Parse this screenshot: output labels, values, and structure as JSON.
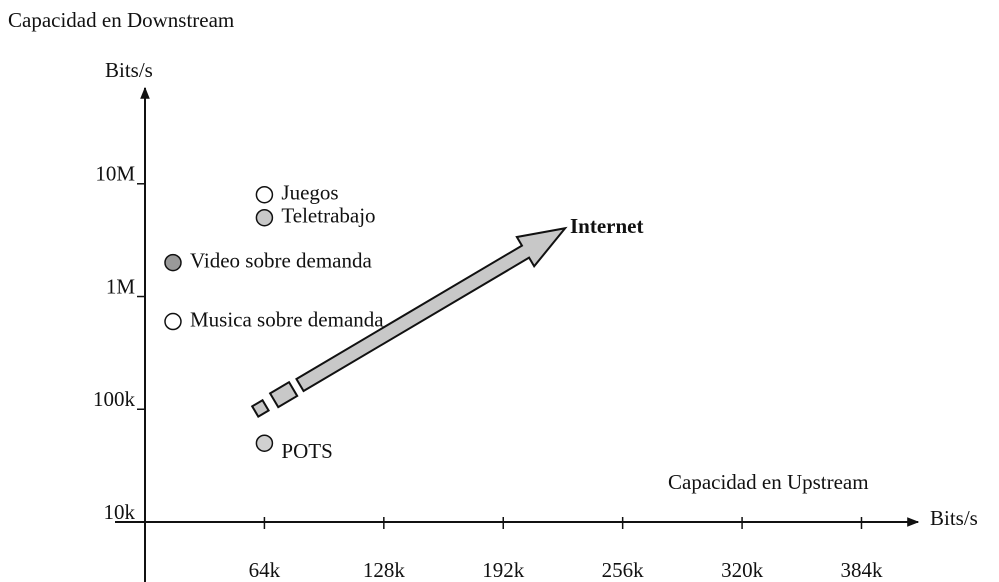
{
  "chart_data": {
    "type": "scatter",
    "y_title": "Capacidad en Downstream",
    "y_unit": "Bits/s",
    "x_title": "Capacidad en Upstream",
    "x_unit": "Bits/s",
    "annotation": "Internet",
    "log_y": true,
    "xlim": [
      0,
      410000
    ],
    "ylim": [
      10000,
      30000000
    ],
    "xticks": [
      {
        "value": 64000,
        "label": "64k"
      },
      {
        "value": 128000,
        "label": "128k"
      },
      {
        "value": 192000,
        "label": "192k"
      },
      {
        "value": 256000,
        "label": "256k"
      },
      {
        "value": 320000,
        "label": "320k"
      },
      {
        "value": 384000,
        "label": "384k"
      }
    ],
    "yticks": [
      {
        "value": 10000,
        "label": "10k"
      },
      {
        "value": 100000,
        "label": "100k"
      },
      {
        "value": 1000000,
        "label": "1M"
      },
      {
        "value": 10000000,
        "label": "10M"
      }
    ],
    "points": [
      {
        "label": "Juegos",
        "x": 64000,
        "y": 8000000,
        "color": "#ffffff"
      },
      {
        "label": "Teletrabajo",
        "x": 64000,
        "y": 5000000,
        "color": "#c8c8c8"
      },
      {
        "label": "Video sobre demanda",
        "x": 15000,
        "y": 2000000,
        "color": "#999999"
      },
      {
        "label": "Musica sobre demanda",
        "x": 15000,
        "y": 600000,
        "color": "#ffffff"
      },
      {
        "label": "POTS",
        "x": 64000,
        "y": 50000,
        "color": "#d0d0d0"
      }
    ]
  }
}
